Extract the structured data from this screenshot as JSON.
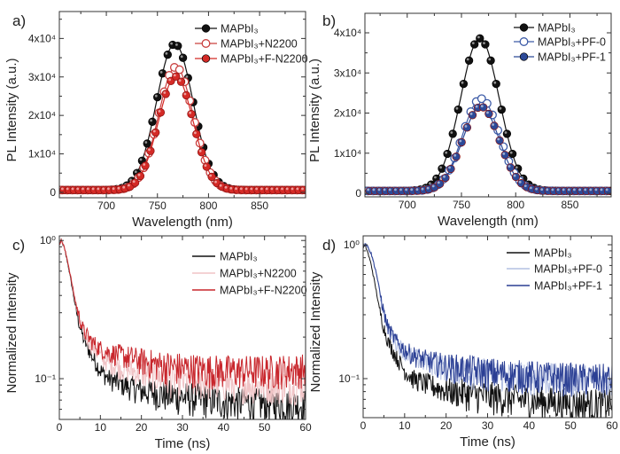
{
  "chart_data": [
    {
      "panel_label": "a)",
      "type": "scatter-line",
      "xlabel": "Wavelength (nm)",
      "ylabel": "PL Intensity (a.u.)",
      "xlim": [
        654,
        895
      ],
      "ylim": [
        -1400,
        47000
      ],
      "yscale": "linear",
      "xticks": [
        700,
        750,
        800,
        850
      ],
      "xtick_labels": [
        "700",
        "750",
        "800",
        "850"
      ],
      "yticks": [
        0,
        10000,
        20000,
        30000,
        40000
      ],
      "ytick_labels": [
        "0",
        "1x10⁴",
        "2x10⁴",
        "3x10⁴",
        "4x10⁴"
      ],
      "grid": false,
      "legend_position": "top-right",
      "series": [
        {
          "name": "MAPbI₃",
          "color": "#111111",
          "marker": "filled-circle",
          "peak_wavelength": 767,
          "peak_intensity": 38000,
          "fwhm": 42,
          "baseline": 600
        },
        {
          "name": "MAPbI₃+N2200",
          "color": "#c9403f",
          "marker": "open-circle",
          "peak_wavelength": 768,
          "peak_intensity": 32000,
          "fwhm": 40,
          "baseline": 600
        },
        {
          "name": "MAPbI₃+F-N2200",
          "color": "#d42a26",
          "marker": "filled-circle",
          "peak_wavelength": 768,
          "peak_intensity": 29500,
          "fwhm": 40,
          "baseline": 600
        }
      ]
    },
    {
      "panel_label": "b)",
      "type": "scatter-line",
      "xlabel": "Wavelength (nm)",
      "ylabel": "PL Intensity (a.u.)",
      "xlim": [
        661,
        888
      ],
      "ylim": [
        -880,
        44860
      ],
      "yscale": "linear",
      "xticks": [
        700,
        750,
        800,
        850
      ],
      "xtick_labels": [
        "700",
        "750",
        "800",
        "850"
      ],
      "yticks": [
        0,
        10000,
        20000,
        30000,
        40000
      ],
      "ytick_labels": [
        "0",
        "1x10⁴",
        "2x10⁴",
        "3x10⁴",
        "4x10⁴"
      ],
      "grid": false,
      "legend_position": "top-right",
      "series": [
        {
          "name": "MAPbI₃",
          "color": "#111111",
          "marker": "filled-circle",
          "peak_wavelength": 767,
          "peak_intensity": 38000,
          "fwhm": 42,
          "baseline": 600
        },
        {
          "name": "MAPbI₃+PF-0",
          "color": "#3e5ca8",
          "marker": "open-circle",
          "peak_wavelength": 768,
          "peak_intensity": 23000,
          "fwhm": 40,
          "baseline": 600
        },
        {
          "name": "MAPbI₃+PF-1",
          "color": "#2c4a98",
          "marker": "filled-circle",
          "peak_wavelength": 768,
          "peak_intensity": 21000,
          "fwhm": 40,
          "baseline": 600
        }
      ]
    },
    {
      "panel_label": "c)",
      "type": "line",
      "xlabel": "Time (ns)",
      "ylabel": "Normalized Intensity",
      "xlim": [
        0,
        60
      ],
      "ylim": [
        0.0507,
        1.08
      ],
      "yscale": "log",
      "xticks": [
        0,
        10,
        20,
        30,
        40,
        50,
        60
      ],
      "xtick_labels": [
        "0",
        "10",
        "20",
        "30",
        "40",
        "50",
        "60"
      ],
      "yticks": [
        1,
        0.1
      ],
      "ytick_labels": [
        "10⁰",
        "10⁻¹"
      ],
      "grid": false,
      "legend_position": "top-right",
      "series": [
        {
          "name": "MAPbI₃",
          "color": "#111111",
          "x": [
            0,
            0.5,
            1,
            2,
            3,
            4,
            5,
            6,
            8,
            10,
            12,
            15,
            20,
            25,
            30,
            40,
            50,
            60
          ],
          "y": [
            0.95,
            1.0,
            0.92,
            0.7,
            0.48,
            0.32,
            0.24,
            0.19,
            0.145,
            0.115,
            0.1,
            0.092,
            0.082,
            0.078,
            0.074,
            0.069,
            0.066,
            0.065
          ]
        },
        {
          "name": "MAPbI₃+N2200",
          "color": "#f0c4c6",
          "x": [
            0,
            0.5,
            1,
            2,
            3,
            4,
            5,
            6,
            8,
            10,
            12,
            15,
            20,
            25,
            30,
            40,
            50,
            60
          ],
          "y": [
            0.95,
            1.0,
            0.93,
            0.72,
            0.5,
            0.34,
            0.26,
            0.21,
            0.17,
            0.145,
            0.13,
            0.12,
            0.11,
            0.102,
            0.097,
            0.093,
            0.09,
            0.09
          ]
        },
        {
          "name": "MAPbI₃+F-N2200",
          "color": "#c8262c",
          "x": [
            0,
            0.5,
            1,
            2,
            3,
            4,
            5,
            6,
            8,
            10,
            12,
            15,
            20,
            25,
            30,
            40,
            50,
            60
          ],
          "y": [
            0.95,
            1.0,
            0.93,
            0.72,
            0.5,
            0.35,
            0.27,
            0.22,
            0.185,
            0.165,
            0.155,
            0.148,
            0.135,
            0.125,
            0.12,
            0.115,
            0.115,
            0.118
          ]
        }
      ]
    },
    {
      "panel_label": "d)",
      "type": "line",
      "xlabel": "Time (ns)",
      "ylabel": "Normalized Intensity",
      "xlim": [
        0,
        60
      ],
      "ylim": [
        0.0511,
        1.165
      ],
      "yscale": "log",
      "xticks": [
        0,
        10,
        20,
        30,
        40,
        50,
        60
      ],
      "xtick_labels": [
        "0",
        "10",
        "20",
        "30",
        "40",
        "50",
        "60"
      ],
      "yticks": [
        1,
        0.1
      ],
      "ytick_labels": [
        "10⁰",
        "10⁻¹"
      ],
      "grid": false,
      "legend_position": "top-right",
      "series": [
        {
          "name": "MAPbI₃",
          "color": "#111111",
          "x": [
            0,
            0.5,
            1,
            2,
            3,
            4,
            5,
            6,
            8,
            10,
            12,
            15,
            20,
            25,
            30,
            40,
            50,
            60
          ],
          "y": [
            0.95,
            0.98,
            0.9,
            0.7,
            0.48,
            0.32,
            0.24,
            0.19,
            0.145,
            0.115,
            0.1,
            0.092,
            0.082,
            0.078,
            0.074,
            0.069,
            0.066,
            0.065
          ]
        },
        {
          "name": "MAPbI₃+PF-0",
          "color": "#b4c0e2",
          "x": [
            0,
            0.5,
            1,
            2,
            3,
            4,
            5,
            6,
            8,
            10,
            12,
            15,
            20,
            25,
            30,
            40,
            50,
            60
          ],
          "y": [
            1.0,
            1.02,
            0.98,
            0.85,
            0.65,
            0.45,
            0.31,
            0.24,
            0.185,
            0.16,
            0.145,
            0.135,
            0.122,
            0.115,
            0.11,
            0.104,
            0.1,
            0.098
          ]
        },
        {
          "name": "MAPbI₃+PF-1",
          "color": "#2b3f94",
          "x": [
            0,
            0.5,
            1,
            2,
            3,
            4,
            5,
            6,
            8,
            10,
            12,
            15,
            20,
            25,
            30,
            40,
            50,
            60
          ],
          "y": [
            1.0,
            1.02,
            0.98,
            0.85,
            0.65,
            0.45,
            0.31,
            0.24,
            0.19,
            0.165,
            0.15,
            0.138,
            0.125,
            0.118,
            0.112,
            0.106,
            0.102,
            0.1
          ]
        }
      ]
    }
  ]
}
